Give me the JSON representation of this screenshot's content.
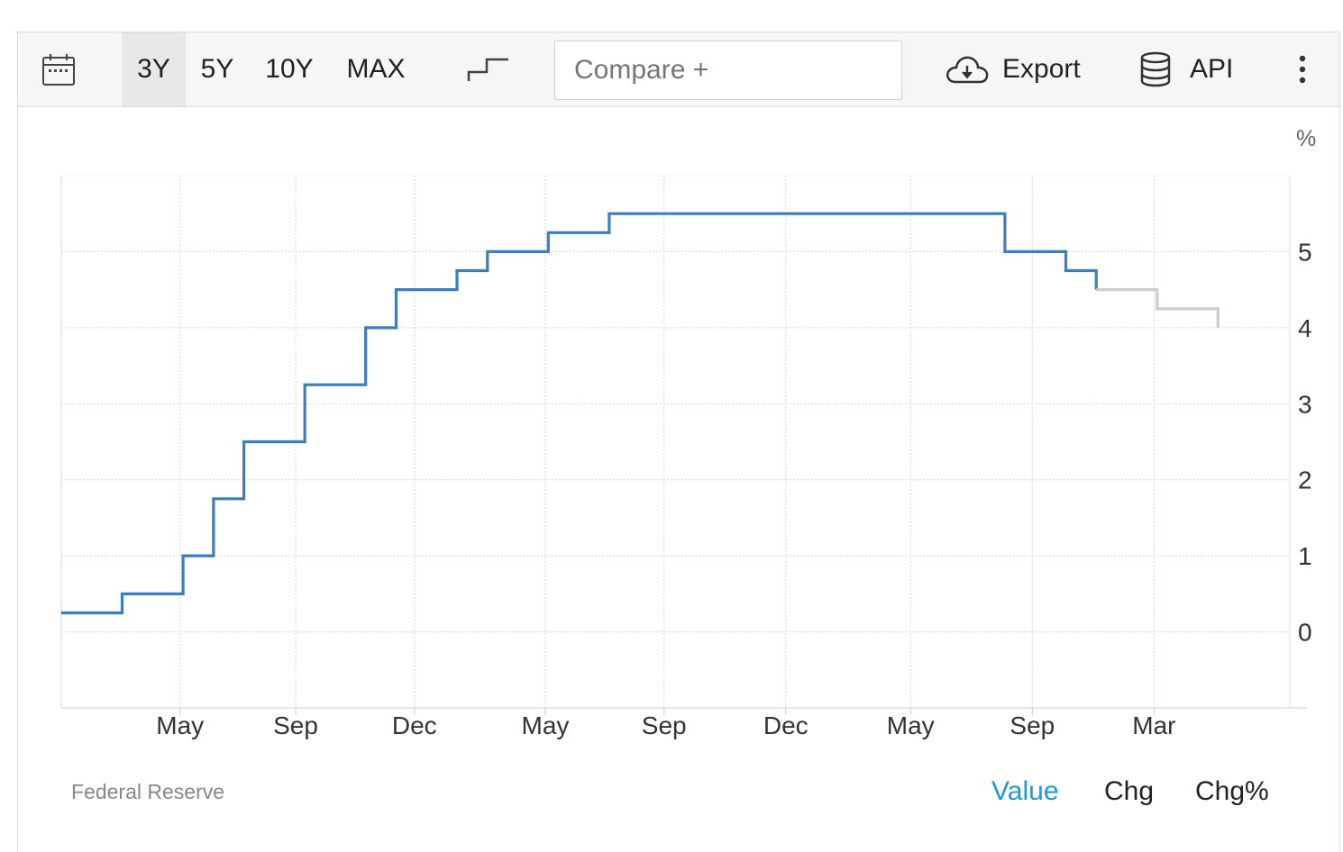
{
  "toolbar": {
    "calendar_icon": "calendar-icon",
    "ranges": [
      "3Y",
      "5Y",
      "10Y",
      "MAX"
    ],
    "active_range": "3Y",
    "chart_style_icon": "step-line-icon",
    "compare_placeholder": "Compare +",
    "export_label": "Export",
    "export_icon": "cloud-download-icon",
    "api_label": "API",
    "api_icon": "database-icon",
    "more_icon": "vertical-dots-icon"
  },
  "chart_data": {
    "type": "line",
    "step": true,
    "unit_label": "%",
    "y_ticks": [
      0,
      1,
      2,
      3,
      4,
      5
    ],
    "ylim": [
      -1,
      6
    ],
    "y_axis_side": "right",
    "x_tick_labels": [
      "May",
      "Sep",
      "Dec",
      "May",
      "Sep",
      "Dec",
      "May",
      "Sep",
      "Mar"
    ],
    "x_tick_months": [
      3.9,
      7.7,
      11.6,
      15.9,
      19.8,
      23.8,
      27.9,
      31.9,
      35.9
    ],
    "xlim": [
      0,
      40.3
    ],
    "grid": true,
    "series": [
      {
        "style": "actual",
        "color": "#3b7dbd",
        "points": [
          [
            0,
            0.25
          ],
          [
            2,
            0.25
          ],
          [
            2,
            0.5
          ],
          [
            4,
            0.5
          ],
          [
            4,
            1.0
          ],
          [
            5,
            1.0
          ],
          [
            5,
            1.75
          ],
          [
            6,
            1.75
          ],
          [
            6,
            2.5
          ],
          [
            8,
            2.5
          ],
          [
            8,
            3.25
          ],
          [
            10,
            3.25
          ],
          [
            10,
            4.0
          ],
          [
            11,
            4.0
          ],
          [
            11,
            4.5
          ],
          [
            13,
            4.5
          ],
          [
            13,
            4.75
          ],
          [
            14,
            4.75
          ],
          [
            14,
            5.0
          ],
          [
            16,
            5.0
          ],
          [
            16,
            5.25
          ],
          [
            18,
            5.25
          ],
          [
            18,
            5.5
          ],
          [
            31,
            5.5
          ],
          [
            31,
            5.0
          ],
          [
            33,
            5.0
          ],
          [
            33,
            4.75
          ],
          [
            34,
            4.75
          ],
          [
            34,
            4.5
          ]
        ]
      },
      {
        "style": "forecast",
        "color": "#cccccc",
        "points": [
          [
            34,
            4.5
          ],
          [
            36,
            4.5
          ],
          [
            36,
            4.25
          ],
          [
            38,
            4.25
          ],
          [
            38,
            4.0
          ]
        ]
      }
    ]
  },
  "footer": {
    "source": "Federal Reserve",
    "modes": [
      "Value",
      "Chg",
      "Chg%"
    ],
    "active_mode": "Value"
  }
}
